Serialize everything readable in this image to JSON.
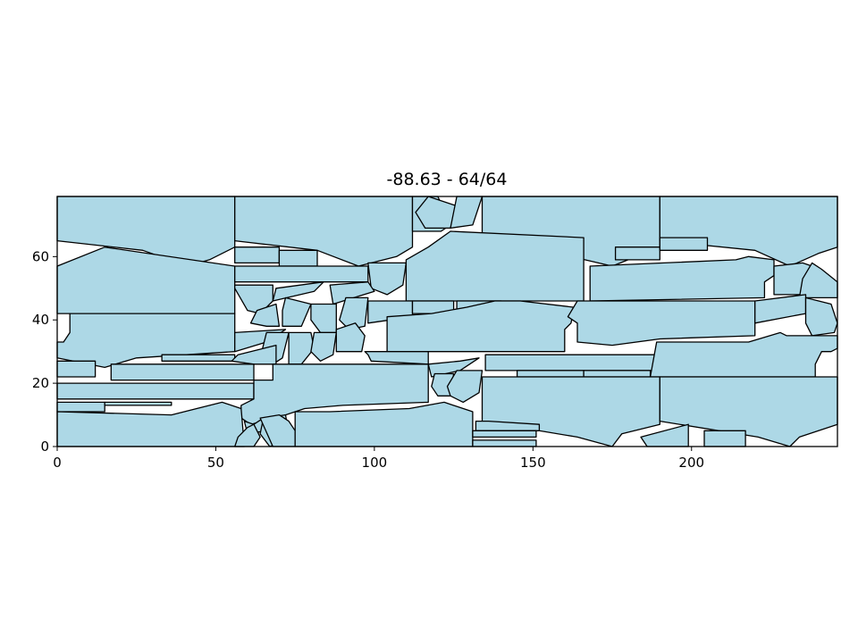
{
  "chart_data": {
    "type": "polygon-packing",
    "title": "-88.63 - 64/64",
    "xlim": [
      0,
      246
    ],
    "ylim": [
      0,
      79
    ],
    "xticks": [
      0,
      50,
      100,
      150,
      200
    ],
    "yticks": [
      0,
      20,
      40,
      60
    ],
    "grid": false,
    "colors": {
      "fill": "#add8e6",
      "edge": "#000000"
    },
    "polygons": [
      [
        [
          0,
          79
        ],
        [
          56,
          79
        ],
        [
          56,
          63
        ],
        [
          48,
          59
        ],
        [
          41,
          57
        ],
        [
          27,
          62
        ],
        [
          0,
          65
        ]
      ],
      [
        [
          56,
          79
        ],
        [
          112,
          79
        ],
        [
          112,
          63
        ],
        [
          107,
          60
        ],
        [
          95,
          57
        ],
        [
          82,
          62
        ],
        [
          56,
          65
        ]
      ],
      [
        [
          112,
          79
        ],
        [
          120,
          79
        ],
        [
          124,
          70
        ],
        [
          121,
          68
        ],
        [
          112,
          68
        ]
      ],
      [
        [
          117,
          79
        ],
        [
          126,
          76
        ],
        [
          124,
          69
        ],
        [
          116,
          69
        ],
        [
          113,
          74
        ]
      ],
      [
        [
          126,
          79
        ],
        [
          134,
          79
        ],
        [
          131,
          70
        ],
        [
          124,
          69
        ]
      ],
      [
        [
          134,
          79
        ],
        [
          190,
          79
        ],
        [
          190,
          63
        ],
        [
          175,
          57
        ],
        [
          162,
          60
        ],
        [
          146,
          62
        ],
        [
          134,
          65
        ]
      ],
      [
        [
          190,
          79
        ],
        [
          246,
          79
        ],
        [
          246,
          63
        ],
        [
          240,
          61
        ],
        [
          231,
          57
        ],
        [
          220,
          62
        ],
        [
          190,
          65
        ]
      ],
      [
        [
          0,
          42
        ],
        [
          56,
          42
        ],
        [
          56,
          57
        ],
        [
          15,
          63
        ],
        [
          0,
          57
        ]
      ],
      [
        [
          56,
          63
        ],
        [
          70,
          63
        ],
        [
          70,
          58
        ],
        [
          56,
          58
        ]
      ],
      [
        [
          70,
          62
        ],
        [
          82,
          62
        ],
        [
          82,
          57
        ],
        [
          70,
          57
        ]
      ],
      [
        [
          56,
          57
        ],
        [
          98,
          57
        ],
        [
          98,
          52
        ],
        [
          56,
          52
        ]
      ],
      [
        [
          98,
          58
        ],
        [
          110,
          58
        ],
        [
          109,
          51
        ],
        [
          104,
          48
        ],
        [
          99,
          50
        ]
      ],
      [
        [
          110,
          59
        ],
        [
          117,
          63
        ],
        [
          124,
          68
        ],
        [
          166,
          66
        ],
        [
          166,
          46
        ],
        [
          110,
          46
        ]
      ],
      [
        [
          176,
          63
        ],
        [
          176,
          59
        ],
        [
          190,
          59
        ],
        [
          190,
          63
        ]
      ],
      [
        [
          190,
          66
        ],
        [
          205,
          66
        ],
        [
          205,
          62
        ],
        [
          190,
          62
        ]
      ],
      [
        [
          168,
          57
        ],
        [
          214,
          59
        ],
        [
          218,
          60
        ],
        [
          226,
          59
        ],
        [
          226,
          54
        ],
        [
          223,
          52
        ],
        [
          223,
          47
        ],
        [
          168,
          46
        ]
      ],
      [
        [
          226,
          57
        ],
        [
          235,
          58
        ],
        [
          238,
          57
        ],
        [
          238,
          48
        ],
        [
          226,
          48
        ]
      ],
      [
        [
          238,
          58
        ],
        [
          241,
          56
        ],
        [
          246,
          52
        ],
        [
          246,
          47
        ],
        [
          234,
          47
        ],
        [
          235,
          53
        ]
      ],
      [
        [
          56,
          51
        ],
        [
          68,
          51
        ],
        [
          68,
          46
        ],
        [
          64,
          42
        ],
        [
          60,
          43
        ],
        [
          56,
          50
        ]
      ],
      [
        [
          69,
          50
        ],
        [
          84,
          52
        ],
        [
          81,
          49
        ],
        [
          68,
          46
        ]
      ],
      [
        [
          86,
          51
        ],
        [
          98,
          52
        ],
        [
          100,
          49
        ],
        [
          87,
          45
        ]
      ],
      [
        [
          63,
          43
        ],
        [
          69,
          45
        ],
        [
          70,
          38
        ],
        [
          66,
          38
        ],
        [
          61,
          39
        ]
      ],
      [
        [
          72,
          47
        ],
        [
          80,
          45
        ],
        [
          77,
          38
        ],
        [
          71,
          38
        ],
        [
          71,
          43
        ]
      ],
      [
        [
          80,
          45
        ],
        [
          88,
          45
        ],
        [
          88,
          36
        ],
        [
          83,
          36
        ],
        [
          80,
          40
        ]
      ],
      [
        [
          91,
          47
        ],
        [
          98,
          47
        ],
        [
          97,
          38
        ],
        [
          92,
          37
        ],
        [
          89,
          40
        ]
      ],
      [
        [
          98,
          46
        ],
        [
          112,
          46
        ],
        [
          112,
          41
        ],
        [
          98,
          39
        ]
      ],
      [
        [
          112,
          46
        ],
        [
          125,
          46
        ],
        [
          125,
          42
        ],
        [
          112,
          42
        ]
      ],
      [
        [
          126,
          46
        ],
        [
          140,
          46
        ],
        [
          140,
          43
        ],
        [
          126,
          43
        ]
      ],
      [
        [
          104,
          41
        ],
        [
          104,
          30
        ],
        [
          160,
          30
        ],
        [
          160,
          37
        ],
        [
          162,
          39
        ],
        [
          163,
          44
        ],
        [
          146,
          46
        ],
        [
          138,
          46
        ],
        [
          129,
          44
        ],
        [
          118,
          42
        ]
      ],
      [
        [
          164,
          46
        ],
        [
          220,
          46
        ],
        [
          220,
          35
        ],
        [
          190,
          34
        ],
        [
          175,
          32
        ],
        [
          164,
          33
        ],
        [
          164,
          39
        ],
        [
          161,
          41
        ]
      ],
      [
        [
          220,
          39
        ],
        [
          236,
          42
        ],
        [
          236,
          48
        ],
        [
          220,
          46
        ]
      ],
      [
        [
          236,
          47
        ],
        [
          244,
          45
        ],
        [
          246,
          39
        ],
        [
          245,
          36
        ],
        [
          238,
          35
        ],
        [
          236,
          39
        ]
      ],
      [
        [
          0,
          33
        ],
        [
          2,
          33
        ],
        [
          4,
          36
        ],
        [
          4,
          42
        ],
        [
          56,
          42
        ],
        [
          56,
          30
        ],
        [
          25,
          28
        ],
        [
          15,
          25
        ],
        [
          0,
          28
        ]
      ],
      [
        [
          56,
          30
        ],
        [
          56,
          36
        ],
        [
          72,
          37
        ],
        [
          66,
          33
        ]
      ],
      [
        [
          66,
          36
        ],
        [
          73,
          36
        ],
        [
          71,
          28
        ],
        [
          68,
          26
        ],
        [
          64,
          28
        ]
      ],
      [
        [
          73,
          36
        ],
        [
          80,
          36
        ],
        [
          81,
          31
        ],
        [
          77,
          26
        ],
        [
          73,
          26
        ]
      ],
      [
        [
          81,
          36
        ],
        [
          88,
          36
        ],
        [
          87,
          29
        ],
        [
          83,
          27
        ],
        [
          80,
          30
        ]
      ],
      [
        [
          88,
          37
        ],
        [
          94,
          39
        ],
        [
          97,
          35
        ],
        [
          96,
          30
        ],
        [
          88,
          30
        ]
      ],
      [
        [
          97,
          30
        ],
        [
          98,
          29
        ],
        [
          99,
          27
        ],
        [
          117,
          26
        ],
        [
          117,
          30
        ]
      ],
      [
        [
          33,
          29
        ],
        [
          56,
          29
        ],
        [
          56,
          27
        ],
        [
          33,
          27
        ]
      ],
      [
        [
          55,
          27
        ],
        [
          62,
          26
        ],
        [
          69,
          26
        ],
        [
          69,
          32
        ],
        [
          57,
          29
        ]
      ],
      [
        [
          0,
          27
        ],
        [
          12,
          27
        ],
        [
          12,
          22
        ],
        [
          0,
          22
        ]
      ],
      [
        [
          17,
          26
        ],
        [
          17,
          21
        ],
        [
          62,
          21
        ],
        [
          62,
          26
        ]
      ],
      [
        [
          117,
          26
        ],
        [
          127,
          27
        ],
        [
          133,
          28
        ],
        [
          127,
          24
        ],
        [
          118,
          22
        ]
      ],
      [
        [
          135,
          29
        ],
        [
          190,
          29
        ],
        [
          190,
          24
        ],
        [
          135,
          24
        ]
      ],
      [
        [
          189,
          33
        ],
        [
          218,
          33
        ],
        [
          228,
          36
        ],
        [
          230,
          35
        ],
        [
          242,
          35
        ],
        [
          246,
          35
        ],
        [
          246,
          31
        ],
        [
          244,
          30
        ],
        [
          241,
          30
        ],
        [
          239,
          26
        ],
        [
          239,
          22
        ],
        [
          187,
          22
        ]
      ],
      [
        [
          145,
          24
        ],
        [
          166,
          24
        ],
        [
          166,
          22
        ],
        [
          145,
          22
        ]
      ],
      [
        [
          166,
          24
        ],
        [
          187,
          24
        ],
        [
          187,
          22
        ],
        [
          166,
          22
        ]
      ],
      [
        [
          0,
          20
        ],
        [
          62,
          20
        ],
        [
          62,
          15
        ],
        [
          0,
          15
        ]
      ],
      [
        [
          0,
          11
        ],
        [
          15,
          11
        ],
        [
          15,
          14
        ],
        [
          0,
          14
        ]
      ],
      [
        [
          15,
          13
        ],
        [
          36,
          13
        ],
        [
          36,
          14
        ],
        [
          15,
          14
        ]
      ],
      [
        [
          62,
          21
        ],
        [
          62,
          15
        ],
        [
          58,
          13
        ],
        [
          58,
          9
        ],
        [
          61,
          7
        ],
        [
          72,
          10
        ],
        [
          78,
          12
        ],
        [
          90,
          13
        ],
        [
          117,
          14
        ],
        [
          117,
          26
        ],
        [
          68,
          26
        ],
        [
          68,
          21
        ]
      ],
      [
        [
          119,
          23
        ],
        [
          125,
          23
        ],
        [
          124,
          16
        ],
        [
          120,
          16
        ],
        [
          118,
          19
        ]
      ],
      [
        [
          126,
          24
        ],
        [
          134,
          24
        ],
        [
          133,
          17
        ],
        [
          128,
          14
        ],
        [
          124,
          16
        ],
        [
          123,
          19
        ]
      ],
      [
        [
          134,
          22
        ],
        [
          190,
          22
        ],
        [
          190,
          7
        ],
        [
          178,
          4
        ],
        [
          175,
          0
        ],
        [
          164,
          3
        ],
        [
          134,
          8
        ]
      ],
      [
        [
          190,
          22
        ],
        [
          246,
          22
        ],
        [
          246,
          7
        ],
        [
          234,
          3
        ],
        [
          231,
          0
        ],
        [
          221,
          3
        ],
        [
          190,
          8
        ]
      ],
      [
        [
          0,
          11
        ],
        [
          36,
          10
        ],
        [
          44,
          12
        ],
        [
          52,
          14
        ],
        [
          58,
          12
        ],
        [
          59,
          0
        ],
        [
          0,
          0
        ]
      ],
      [
        [
          59,
          8
        ],
        [
          62,
          7
        ],
        [
          65,
          9
        ],
        [
          66,
          5
        ],
        [
          60,
          4
        ]
      ],
      [
        [
          64,
          4
        ],
        [
          65,
          9
        ],
        [
          72,
          10
        ],
        [
          73,
          4
        ],
        [
          70,
          1
        ],
        [
          67,
          0
        ]
      ],
      [
        [
          60,
          6
        ],
        [
          62,
          7
        ],
        [
          64,
          3
        ],
        [
          62,
          0
        ],
        [
          56,
          0
        ],
        [
          57,
          3
        ]
      ],
      [
        [
          68,
          0
        ],
        [
          75,
          0
        ],
        [
          75,
          5
        ],
        [
          73,
          8
        ],
        [
          70,
          10
        ],
        [
          64,
          9
        ]
      ],
      [
        [
          75,
          0
        ],
        [
          75,
          11
        ],
        [
          86,
          11
        ],
        [
          111,
          12
        ],
        [
          122,
          14
        ],
        [
          131,
          11
        ],
        [
          131,
          0
        ]
      ],
      [
        [
          132,
          8
        ],
        [
          136,
          8
        ],
        [
          152,
          7
        ],
        [
          152,
          5
        ],
        [
          132,
          5
        ]
      ],
      [
        [
          131,
          5
        ],
        [
          151,
          5
        ],
        [
          151,
          3
        ],
        [
          131,
          3
        ]
      ],
      [
        [
          131,
          2
        ],
        [
          151,
          2
        ],
        [
          151,
          0
        ],
        [
          131,
          0
        ]
      ],
      [
        [
          186,
          0
        ],
        [
          199,
          0
        ],
        [
          199,
          7
        ],
        [
          184,
          3
        ]
      ],
      [
        [
          204,
          0
        ],
        [
          217,
          0
        ],
        [
          217,
          5
        ],
        [
          204,
          5
        ]
      ]
    ]
  }
}
